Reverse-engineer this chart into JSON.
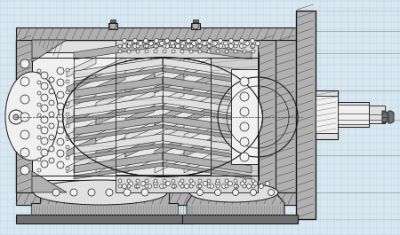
{
  "bg_color": "#d8e8f0",
  "grid_color": "#b0c8dc",
  "line_color": "#1a1a1a",
  "fill_light": "#e0e0e0",
  "fill_medium": "#b0b0b0",
  "fill_dark": "#707070",
  "fill_white": "#f0f0f0",
  "fill_hatch": "#c8c8c8",
  "figsize": [
    4.5,
    2.65
  ],
  "dpi": 100
}
